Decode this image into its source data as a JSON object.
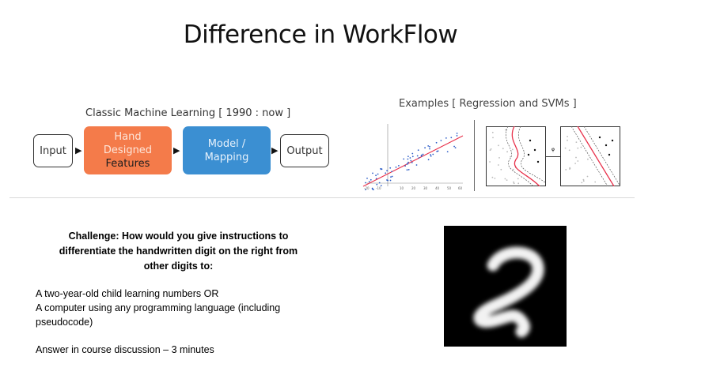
{
  "slide": {
    "title": "Difference in WorkFlow",
    "classic_heading": "Classic Machine Learning [ 1990 : now ]",
    "examples_heading": "Examples [ Regression and SVMs ]",
    "flow": {
      "input": "Input",
      "features_line1": "Hand",
      "features_line2": "Designed",
      "features_line3": "Features",
      "model_line1": "Model /",
      "model_line2": "Mapping",
      "output": "Output"
    },
    "colors": {
      "features_box": "#f47b4a",
      "model_box": "#3b8fd2",
      "regression_line": "#e8304a",
      "regression_points": "#2f5fc8"
    },
    "challenge": {
      "line1": "Challenge: How would you give instructions to",
      "line2": "differentiate the handwritten digit on the right from",
      "line3": "other digits to:"
    },
    "options": {
      "child": "A two-year-old child learning numbers OR",
      "computer": "A computer using any programming language (including pseudocode)"
    },
    "answer": "Answer in course discussion – 3 minutes"
  }
}
